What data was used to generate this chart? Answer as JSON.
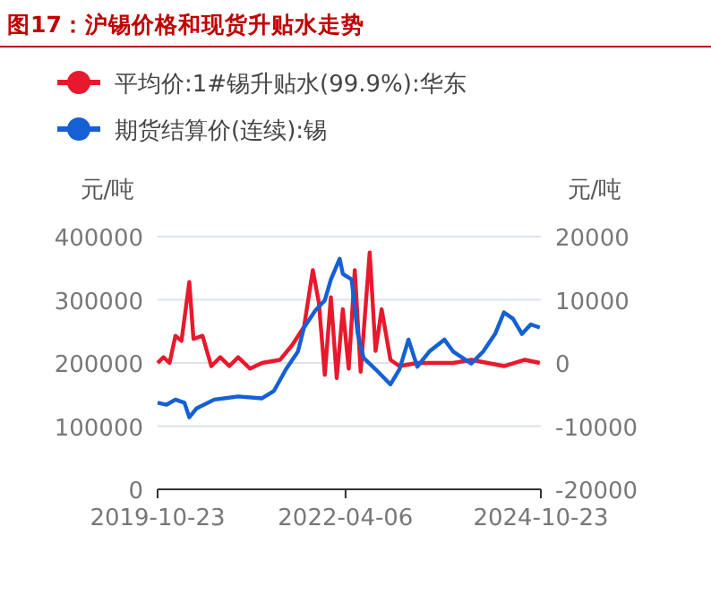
{
  "chart_data": {
    "type": "line",
    "title": "图17：沪锡价格和现货升贴水走势",
    "ylabel": "元/吨",
    "y2label": "元/吨",
    "legend": "top",
    "grid": "y",
    "marker": "none",
    "line_style": "solid",
    "xlim": [
      "2019-10-23",
      "2024-10-23"
    ],
    "xticks": [
      {
        "value": "2019-10-23",
        "label": "2019-10-23"
      },
      {
        "value": "2022-04-06",
        "label": "2022-04-06"
      },
      {
        "value": "2024-10-23",
        "label": "2024-10-23"
      }
    ],
    "ylim": [
      0,
      400000
    ],
    "yticks": [
      0,
      100000,
      200000,
      300000,
      400000
    ],
    "y2lim": [
      -20000,
      20000
    ],
    "y2ticks": [
      -20000,
      -10000,
      0,
      10000,
      20000
    ],
    "series": [
      {
        "name": "平均价:1#锡升贴水(99.9%):华东",
        "color": "#e8192c",
        "axis": "y2",
        "x": [
          "2019-10-23",
          "2019-11-20",
          "2019-12-19",
          "2020-01-16",
          "2020-02-14",
          "2020-03-22",
          "2020-04-11",
          "2020-05-24",
          "2020-07-05",
          "2020-08-17",
          "2020-09-29",
          "2020-11-10",
          "2021-01-06",
          "2021-03-04",
          "2021-05-29",
          "2021-07-25",
          "2021-09-20",
          "2021-11-01",
          "2021-11-30",
          "2021-12-28",
          "2022-01-26",
          "2022-02-23",
          "2022-03-24",
          "2022-04-21",
          "2022-05-20",
          "2022-06-17",
          "2022-07-30",
          "2022-08-27",
          "2022-09-25",
          "2022-11-06",
          "2022-12-19",
          "2023-03-14",
          "2023-09-01",
          "2023-11-26",
          "2024-04-30",
          "2024-08-08",
          "2024-10-18"
        ],
        "values": [
          0,
          900,
          0,
          4300,
          3500,
          12800,
          3800,
          4300,
          -500,
          900,
          -500,
          900,
          -900,
          0,
          500,
          2800,
          5700,
          14700,
          9500,
          -1900,
          10400,
          -2400,
          8500,
          -900,
          14700,
          -1400,
          17500,
          1900,
          8500,
          500,
          -500,
          0,
          0,
          500,
          -500,
          500,
          0
        ]
      },
      {
        "name": "期货结算价(连续):锡",
        "color": "#1560d4",
        "axis": "y",
        "x": [
          "2019-10-23",
          "2019-12-05",
          "2020-01-16",
          "2020-02-28",
          "2020-03-22",
          "2020-04-25",
          "2020-07-19",
          "2020-11-10",
          "2021-03-04",
          "2021-04-30",
          "2021-06-26",
          "2021-08-22",
          "2021-09-20",
          "2021-11-15",
          "2021-12-28",
          "2022-01-26",
          "2022-03-09",
          "2022-03-24",
          "2022-05-05",
          "2022-06-03",
          "2022-07-01",
          "2022-08-27",
          "2022-11-06",
          "2022-12-19",
          "2023-01-31",
          "2023-03-14",
          "2023-05-10",
          "2023-07-21",
          "2023-09-01",
          "2023-11-26",
          "2024-01-22",
          "2024-03-19",
          "2024-04-30",
          "2024-06-12",
          "2024-07-25",
          "2024-09-05",
          "2024-10-18"
        ],
        "values": [
          137000,
          134000,
          142000,
          137000,
          114000,
          128000,
          142000,
          147000,
          144000,
          156000,
          190000,
          218000,
          256000,
          284000,
          299000,
          332000,
          365000,
          341000,
          332000,
          246000,
          208000,
          190000,
          166000,
          190000,
          237000,
          194000,
          218000,
          237000,
          218000,
          199000,
          218000,
          246000,
          280000,
          270000,
          246000,
          261000,
          256000
        ]
      }
    ]
  }
}
